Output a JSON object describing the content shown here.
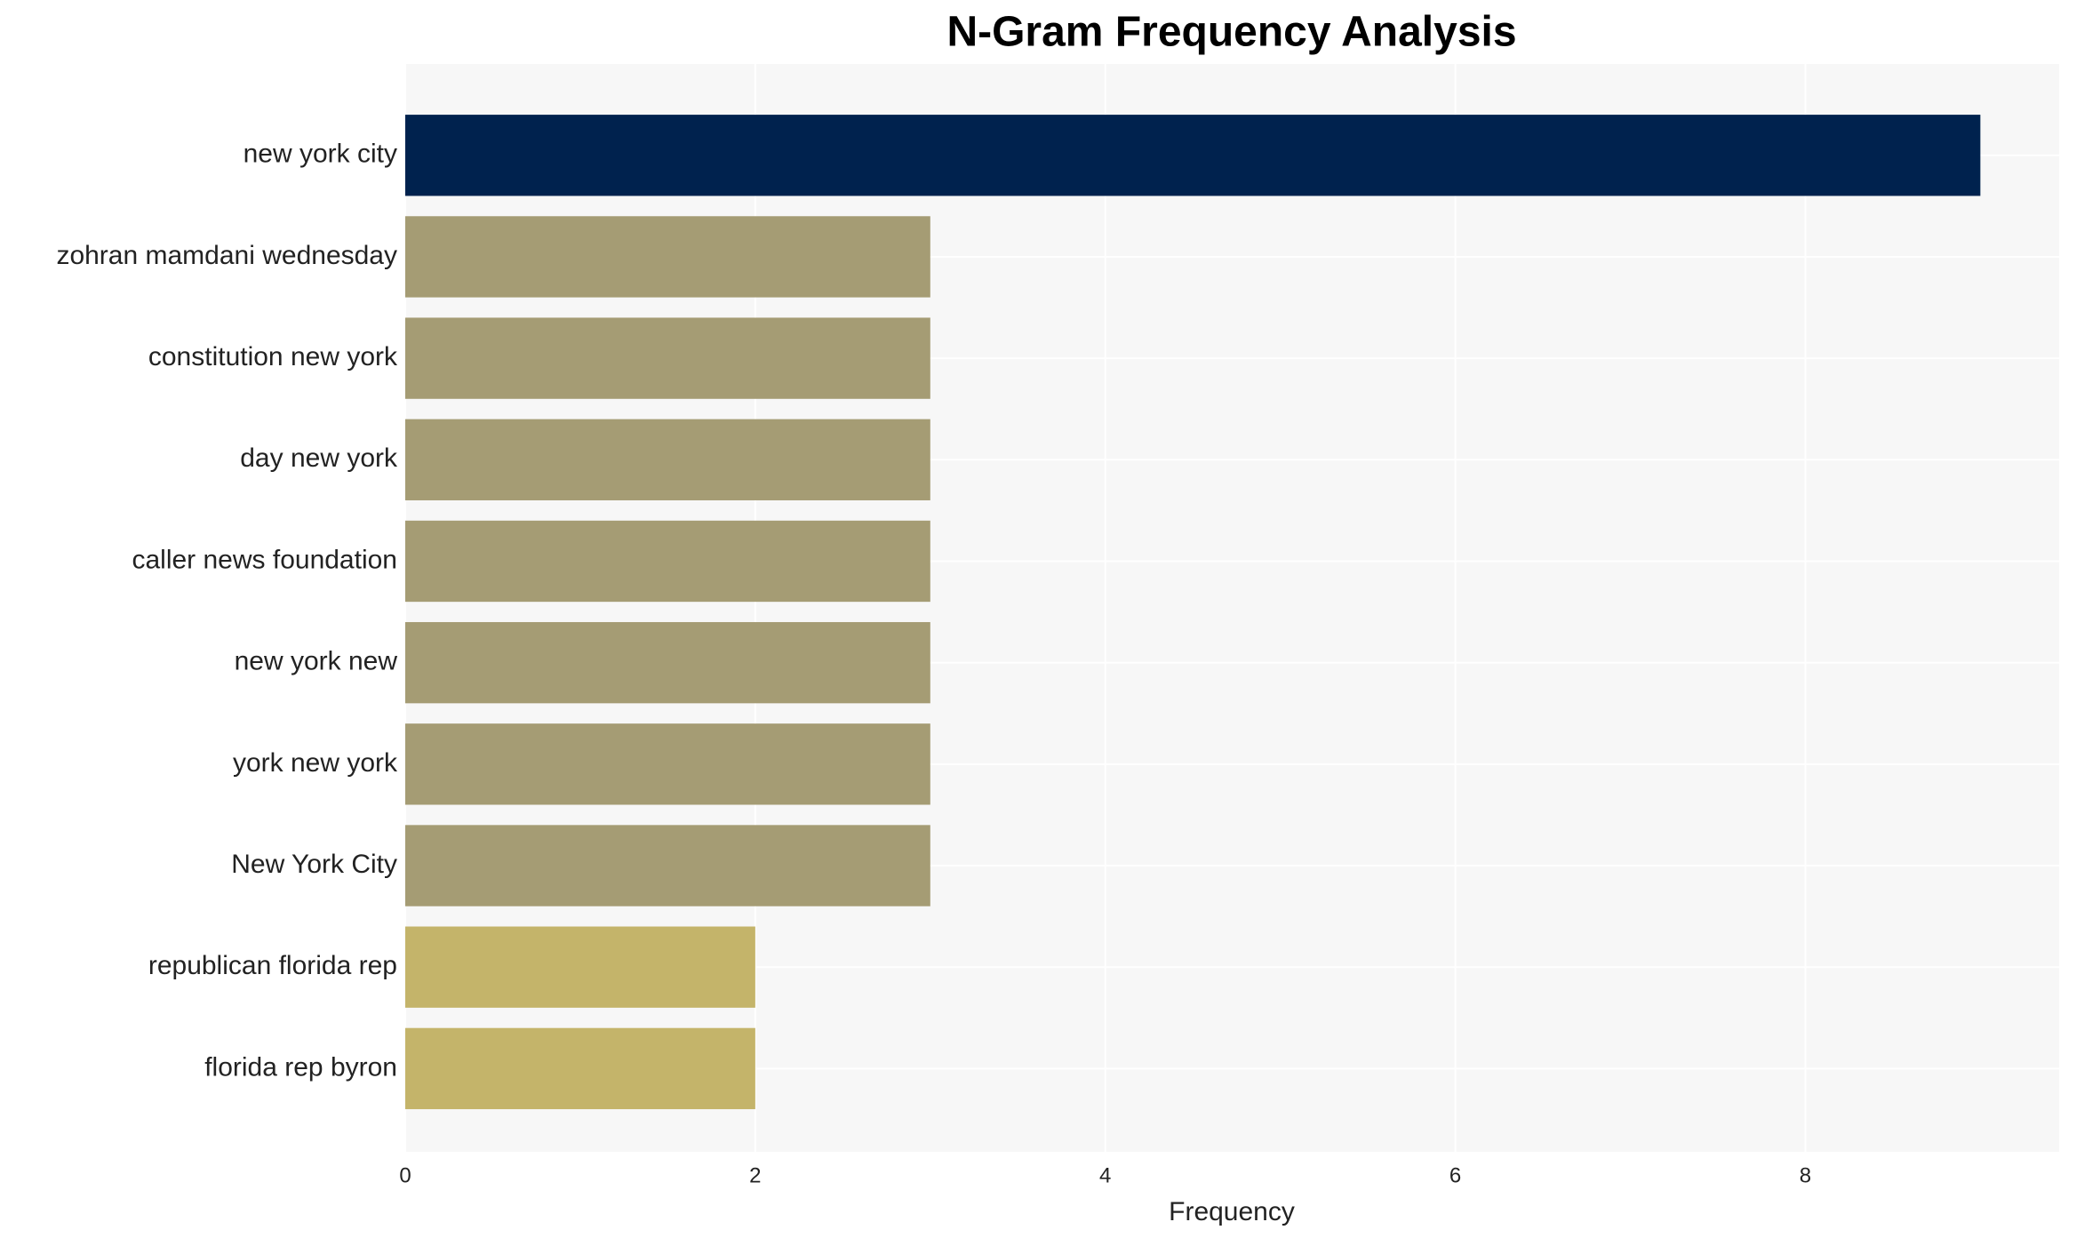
{
  "chart_data": {
    "type": "bar",
    "orientation": "horizontal",
    "title": "N-Gram Frequency Analysis",
    "x_label": "Frequency",
    "categories": [
      "new york city",
      "zohran mamdani wednesday",
      "constitution new york",
      "day new york",
      "caller news foundation",
      "new york new",
      "york new york",
      "New York City",
      "republican florida rep",
      "florida rep byron"
    ],
    "values": [
      9,
      3,
      3,
      3,
      3,
      3,
      3,
      3,
      2,
      2
    ],
    "colors": [
      "#00224e",
      "#a59c74",
      "#a59c74",
      "#a59c74",
      "#a59c74",
      "#a59c74",
      "#a59c74",
      "#a59c74",
      "#c4b46a",
      "#c4b46a"
    ],
    "xlim": [
      0,
      9.45
    ],
    "xticks": [
      0,
      2,
      4,
      6,
      8
    ],
    "grid": true
  }
}
